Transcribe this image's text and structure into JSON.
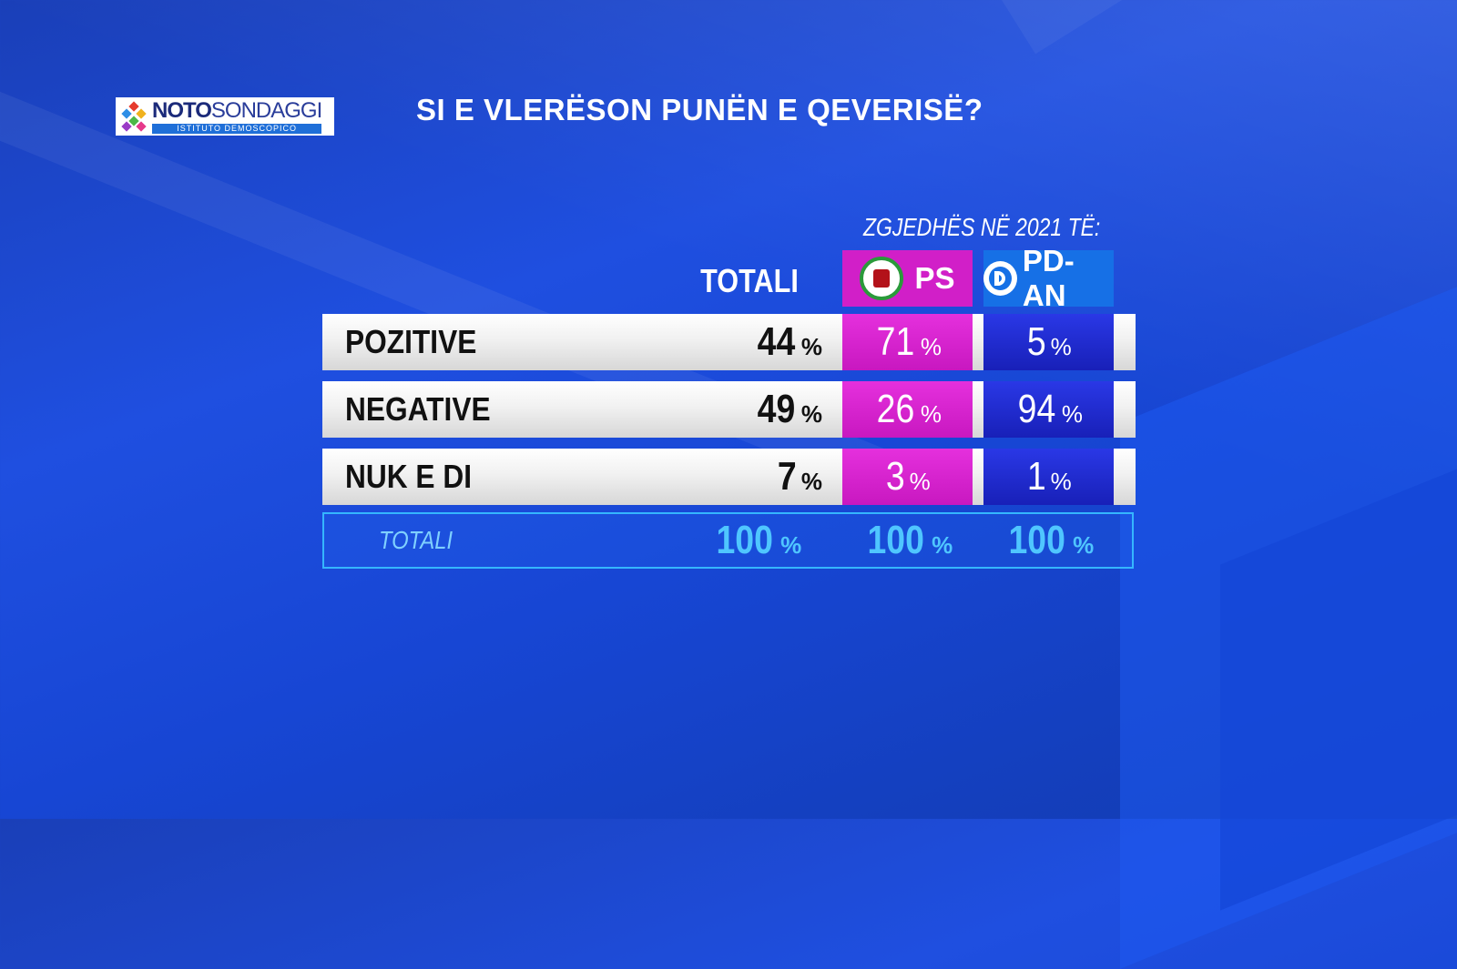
{
  "header": {
    "logo_name_bold": "NOTO",
    "logo_name_thin": "SONDAGGI",
    "logo_sub": "ISTITUTO DEMOSCOPICO",
    "title": "SI E VLERËSON PUNËN E QEVERISË?",
    "subtitle": "ZGJEDHËS NË 2021 TË:"
  },
  "columns": {
    "total": "TOTALI",
    "ps": "PS",
    "pd": "PD-AN"
  },
  "colors": {
    "ps": "#d11fc8",
    "pd": "#1820b8",
    "total_outline": "#35b6ff"
  },
  "chart_data": {
    "type": "table",
    "title": "SI E VLERËSON PUNËN E QEVERISË?",
    "column_group_label": "ZGJEDHËS NË 2021 TË:",
    "columns": [
      "TOTALI",
      "PS",
      "PD-AN"
    ],
    "rows": [
      {
        "label": "POZITIVE",
        "values": [
          "44",
          "71",
          "5"
        ]
      },
      {
        "label": "NEGATIVE",
        "values": [
          "49",
          "26",
          "94"
        ]
      },
      {
        "label": "NUK E DI",
        "values": [
          "7",
          "3",
          "1"
        ]
      }
    ],
    "unit": "%",
    "totals": {
      "label": "TOTALI",
      "values": [
        "100",
        "100",
        "100"
      ]
    }
  }
}
